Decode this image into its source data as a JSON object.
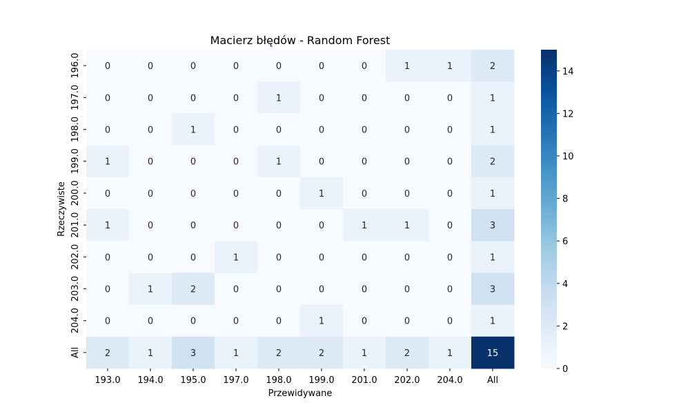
{
  "chart_data": {
    "type": "heatmap",
    "title": "Macierz błędów - Random Forest",
    "xlabel": "Przewidywane",
    "ylabel": "Rzeczywiste",
    "x_categories": [
      "193.0",
      "194.0",
      "195.0",
      "197.0",
      "198.0",
      "199.0",
      "201.0",
      "202.0",
      "204.0",
      "All"
    ],
    "y_categories": [
      "196.0",
      "197.0",
      "198.0",
      "199.0",
      "200.0",
      "201.0",
      "202.0",
      "203.0",
      "204.0",
      "All"
    ],
    "values": [
      [
        0,
        0,
        0,
        0,
        0,
        0,
        0,
        1,
        1,
        2
      ],
      [
        0,
        0,
        0,
        0,
        1,
        0,
        0,
        0,
        0,
        1
      ],
      [
        0,
        0,
        1,
        0,
        0,
        0,
        0,
        0,
        0,
        1
      ],
      [
        1,
        0,
        0,
        0,
        1,
        0,
        0,
        0,
        0,
        2
      ],
      [
        0,
        0,
        0,
        0,
        0,
        1,
        0,
        0,
        0,
        1
      ],
      [
        1,
        0,
        0,
        0,
        0,
        0,
        1,
        1,
        0,
        3
      ],
      [
        0,
        0,
        0,
        1,
        0,
        0,
        0,
        0,
        0,
        1
      ],
      [
        0,
        1,
        2,
        0,
        0,
        0,
        0,
        0,
        0,
        3
      ],
      [
        0,
        0,
        0,
        0,
        0,
        1,
        0,
        0,
        0,
        1
      ],
      [
        2,
        1,
        3,
        1,
        2,
        2,
        1,
        2,
        1,
        15
      ]
    ],
    "value_range": [
      0,
      15
    ],
    "colormap": "Blues",
    "colorbar_ticks": [
      "0",
      "2",
      "4",
      "6",
      "8",
      "10",
      "12",
      "14"
    ]
  }
}
